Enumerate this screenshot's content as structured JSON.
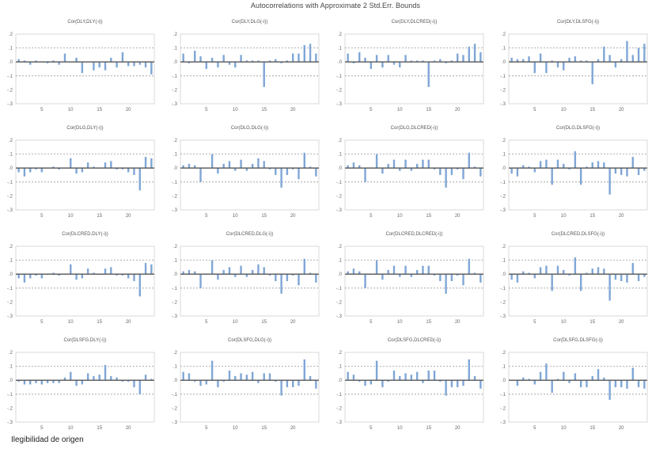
{
  "title": "Autocorrelations with Approximate 2 Std.Err. Bounds",
  "footnote": "Ilegibilidad de origen",
  "chart_data": {
    "type": "bar",
    "layout": "4x4 grid of correlogram panels",
    "lags": [
      1,
      2,
      3,
      4,
      5,
      6,
      7,
      8,
      9,
      10,
      11,
      12,
      13,
      14,
      15,
      16,
      17,
      18,
      19,
      20,
      21,
      22,
      23,
      24
    ],
    "ylim": [
      -0.3,
      0.2
    ],
    "y_ticks": [
      0.2,
      0.1,
      0.0,
      -0.1,
      -0.2,
      -0.3
    ],
    "y_tick_labels": [
      ".2",
      ".1",
      ".0",
      "-.1",
      "-.2",
      "-.3"
    ],
    "x_ticks": [
      5,
      10,
      15,
      20
    ],
    "x_tick_labels": [
      "5",
      "10",
      "15",
      "20"
    ],
    "bound": 0.1,
    "bar_color": "#7fa6d6",
    "panels": [
      {
        "title": "Cor(DLY,DLY(-i))",
        "values": [
          0.02,
          0.01,
          -0.02,
          0.01,
          0,
          -0.01,
          0.01,
          -0.02,
          0.06,
          0,
          0.03,
          -0.08,
          0,
          -0.06,
          -0.04,
          -0.06,
          0.03,
          -0.04,
          0.07,
          -0.03,
          -0.03,
          -0.02,
          -0.04,
          -0.09
        ]
      },
      {
        "title": "Cor(DLY,DLG(-i))",
        "values": [
          0.06,
          -0.01,
          0.08,
          0.04,
          -0.05,
          0.03,
          -0.04,
          0.05,
          -0.02,
          -0.04,
          0.05,
          0.01,
          0.01,
          0.01,
          -0.18,
          0.01,
          0.02,
          -0.01,
          0.01,
          0.06,
          0.06,
          0.12,
          0.13,
          0.06
        ]
      },
      {
        "title": "Cor(DLY,DLCRED(-i))",
        "values": [
          0.06,
          -0.01,
          0.07,
          0.03,
          -0.05,
          0.05,
          -0.04,
          0.05,
          -0.02,
          -0.04,
          0.05,
          0.01,
          0.01,
          0.01,
          -0.18,
          0.01,
          0.02,
          -0.01,
          0.01,
          0.06,
          0.05,
          0.11,
          0.13,
          0.07
        ]
      },
      {
        "title": "Cor(DLY,DLSFG(-i))",
        "values": [
          0.03,
          0.02,
          0.02,
          0.04,
          -0.08,
          0.06,
          -0.08,
          0.01,
          -0.04,
          -0.06,
          0.03,
          0.04,
          0.01,
          0.01,
          -0.16,
          0.02,
          0.11,
          0.05,
          -0.04,
          0.02,
          0.15,
          0.05,
          0.1,
          0.13
        ]
      },
      {
        "title": "Cor(DLG,DLY(-i))",
        "values": [
          -0.03,
          -0.06,
          -0.03,
          -0.01,
          -0.03,
          0,
          0.01,
          -0.01,
          0,
          0.07,
          -0.04,
          -0.03,
          0.04,
          0.01,
          0,
          0.04,
          0.05,
          -0.01,
          -0.01,
          -0.03,
          -0.05,
          -0.16,
          0.08,
          0.07
        ]
      },
      {
        "title": "Cor(DLG,DLG(-i))",
        "values": [
          0.02,
          0.03,
          0.02,
          -0.1,
          0,
          0.1,
          -0.04,
          0.03,
          0.05,
          -0.02,
          0.06,
          -0.02,
          0.03,
          0.07,
          0.05,
          -0.01,
          -0.05,
          -0.14,
          -0.05,
          -0.01,
          -0.08,
          0.11,
          0.01,
          -0.06
        ]
      },
      {
        "title": "Cor(DLG,DLCRED(-i))",
        "values": [
          0.02,
          0.04,
          0.02,
          -0.1,
          0,
          0.1,
          -0.04,
          0.03,
          0.06,
          -0.02,
          0.06,
          -0.02,
          0.03,
          0.06,
          0.06,
          -0.01,
          -0.05,
          -0.14,
          -0.05,
          -0.01,
          -0.08,
          0.11,
          0.01,
          -0.06
        ]
      },
      {
        "title": "Cor(DLG,DLSFG(-i))",
        "values": [
          -0.04,
          -0.06,
          0.02,
          0.01,
          -0.03,
          0.05,
          0.06,
          -0.12,
          0.06,
          0.03,
          -0.01,
          0.12,
          -0.12,
          0.01,
          0.04,
          0.05,
          0.04,
          -0.19,
          -0.04,
          -0.05,
          -0.06,
          0.08,
          -0.05,
          -0.02
        ]
      },
      {
        "title": "Cor(DLCRED,DLY(-i))",
        "values": [
          -0.03,
          -0.06,
          -0.03,
          -0.01,
          -0.03,
          0,
          0.01,
          -0.01,
          0,
          0.07,
          -0.04,
          -0.03,
          0.04,
          0.01,
          0,
          0.04,
          0.05,
          -0.01,
          -0.01,
          -0.03,
          -0.05,
          -0.16,
          0.08,
          0.07
        ]
      },
      {
        "title": "Cor(DLCRED,DLG(-i))",
        "values": [
          0.02,
          0.03,
          0.02,
          -0.1,
          0,
          0.1,
          -0.04,
          0.03,
          0.05,
          -0.02,
          0.06,
          -0.02,
          0.03,
          0.07,
          0.05,
          -0.01,
          -0.05,
          -0.14,
          -0.05,
          -0.01,
          -0.08,
          0.11,
          0.01,
          -0.06
        ]
      },
      {
        "title": "Cor(DLCRED,DLCRED(-i))",
        "values": [
          0.02,
          0.04,
          0.02,
          -0.1,
          0,
          0.1,
          -0.04,
          0.03,
          0.06,
          -0.02,
          0.06,
          -0.02,
          0.03,
          0.06,
          0.06,
          -0.01,
          -0.05,
          -0.14,
          -0.05,
          -0.01,
          -0.08,
          0.11,
          0.01,
          -0.06
        ]
      },
      {
        "title": "Cor(DLCRED,DLSFG(-i))",
        "values": [
          -0.04,
          -0.06,
          0.02,
          0.01,
          -0.03,
          0.05,
          0.06,
          -0.12,
          0.06,
          0.03,
          -0.01,
          0.12,
          -0.12,
          0.01,
          0.04,
          0.05,
          0.04,
          -0.19,
          -0.04,
          -0.05,
          -0.06,
          0.08,
          -0.05,
          -0.02
        ]
      },
      {
        "title": "Cor(DLSFG,DLY(-i))",
        "values": [
          -0.01,
          -0.03,
          -0.03,
          -0.02,
          -0.03,
          -0.02,
          -0.02,
          -0.02,
          0.02,
          0.06,
          -0.04,
          -0.03,
          0.05,
          0.03,
          0.04,
          0.11,
          0.03,
          0.02,
          -0.01,
          -0.01,
          -0.05,
          -0.1,
          0.04,
          0.01
        ]
      },
      {
        "title": "Cor(DLSFG,DLG(-i))",
        "values": [
          0.06,
          0.05,
          -0.01,
          -0.04,
          -0.03,
          0.14,
          -0.05,
          -0.01,
          0.07,
          0.03,
          0.05,
          0.04,
          0.06,
          -0.02,
          0.05,
          0.05,
          -0.01,
          -0.11,
          -0.05,
          -0.05,
          -0.04,
          0.15,
          0.03,
          -0.06
        ]
      },
      {
        "title": "Cor(DLSFG,DLCRED(-i))",
        "values": [
          0.06,
          0.04,
          -0.01,
          -0.04,
          -0.03,
          0.14,
          -0.05,
          -0.01,
          0.07,
          0.03,
          0.05,
          0.04,
          0.06,
          -0.02,
          0.07,
          0.07,
          -0.01,
          -0.11,
          -0.05,
          -0.05,
          -0.04,
          0.15,
          0.03,
          -0.06
        ]
      },
      {
        "title": "Cor(DLSFG,DLSFG(-i))",
        "values": [
          0,
          -0.04,
          0.02,
          0.01,
          -0.03,
          0.06,
          0.12,
          -0.09,
          0.01,
          0.06,
          -0.02,
          0.05,
          -0.05,
          -0.05,
          0.03,
          0.08,
          0.02,
          -0.14,
          -0.05,
          -0.05,
          -0.06,
          0.09,
          -0.05,
          -0.06
        ]
      }
    ]
  }
}
